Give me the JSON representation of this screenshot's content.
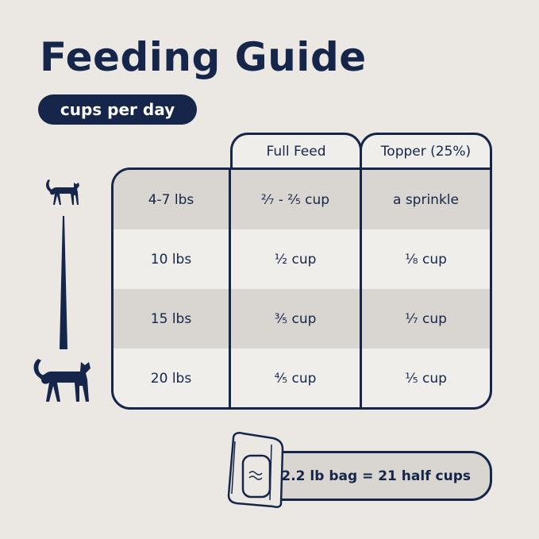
{
  "title": "Feeding Guide",
  "unit_badge": "cups per day",
  "table": {
    "headers": [
      "Full Feed",
      "Topper (25%)"
    ],
    "rows": [
      {
        "weight": "4-7 lbs",
        "full_feed": "²⁄₇ - ²⁄₅ cup",
        "topper": "a sprinkle"
      },
      {
        "weight": "10 lbs",
        "full_feed": "¹⁄₂ cup",
        "topper": "¹⁄₈ cup"
      },
      {
        "weight": "15 lbs",
        "full_feed": "³⁄₅ cup",
        "topper": "¹⁄₇ cup"
      },
      {
        "weight": "20 lbs",
        "full_feed": "⁴⁄₅ cup",
        "topper": "¹⁄₅ cup"
      }
    ]
  },
  "bag_note": "2.2 lb bag = 21 half cups",
  "colors": {
    "navy": "#15264a",
    "background": "#ebe8e4",
    "shaded_row": "#d9d5d0"
  },
  "icons": [
    "cat-small-icon",
    "cat-large-icon",
    "size-wedge-icon",
    "food-bag-icon"
  ]
}
